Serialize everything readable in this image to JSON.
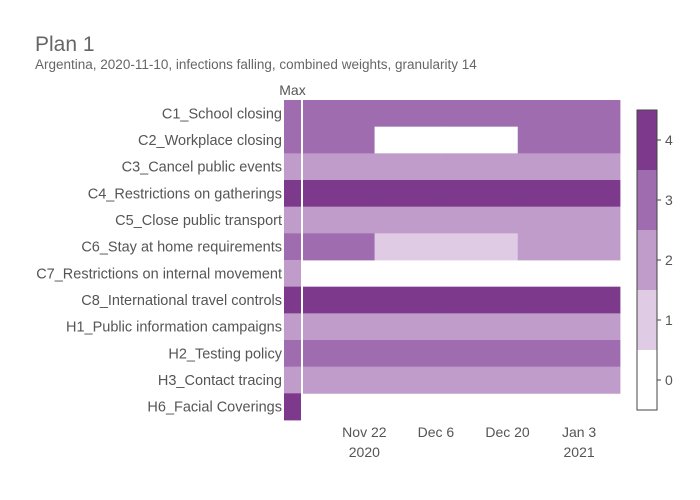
{
  "chart_data": {
    "type": "heatmap",
    "title": "Plan 1",
    "subtitle": "Argentina, 2020-11-10, infections falling, combined weights, granularity 14",
    "max_column_label": "Max",
    "rows": [
      "C1_School closing",
      "C2_Workplace closing",
      "C3_Cancel public events",
      "C4_Restrictions on gatherings",
      "C5_Close public transport",
      "C6_Stay at home requirements",
      "C7_Restrictions on internal movement",
      "C8_International travel controls",
      "H1_Public information campaigns",
      "H2_Testing policy",
      "H3_Contact tracing",
      "H6_Facial Coverings"
    ],
    "max_values": [
      3,
      3,
      2,
      4,
      2,
      3,
      2,
      4,
      2,
      3,
      2,
      4
    ],
    "period_starts": [
      "2020-11-10",
      "2020-11-24",
      "2020-12-08",
      "2020-12-22"
    ],
    "period_end": "2021-01-11",
    "values": [
      [
        3,
        3,
        3,
        3
      ],
      [
        3,
        0,
        0,
        3
      ],
      [
        2,
        2,
        2,
        2
      ],
      [
        4,
        4,
        4,
        4
      ],
      [
        2,
        2,
        2,
        2
      ],
      [
        3,
        1,
        1,
        2
      ],
      [
        null,
        null,
        null,
        null
      ],
      [
        4,
        4,
        4,
        4
      ],
      [
        2,
        2,
        2,
        2
      ],
      [
        3,
        3,
        3,
        3
      ],
      [
        2,
        2,
        2,
        2
      ],
      [
        null,
        null,
        null,
        null
      ]
    ],
    "x_ticks": [
      {
        "date": "2020-11-22",
        "label": "Nov 22",
        "sublabel": "2020"
      },
      {
        "date": "2020-12-06",
        "label": "Dec 6",
        "sublabel": ""
      },
      {
        "date": "2020-12-20",
        "label": "Dec 20",
        "sublabel": ""
      },
      {
        "date": "2021-01-03",
        "label": "Jan 3",
        "sublabel": "2021"
      }
    ],
    "colorscale": {
      "levels": [
        0,
        1,
        2,
        3,
        4
      ],
      "colors": [
        "#ffffff",
        "#e0cbe4",
        "#bf9cc9",
        "#9f6daf",
        "#7d3a8c"
      ],
      "tick_labels": [
        "0",
        "1",
        "2",
        "3",
        "4"
      ],
      "range": [
        -0.5,
        4.5
      ]
    }
  }
}
